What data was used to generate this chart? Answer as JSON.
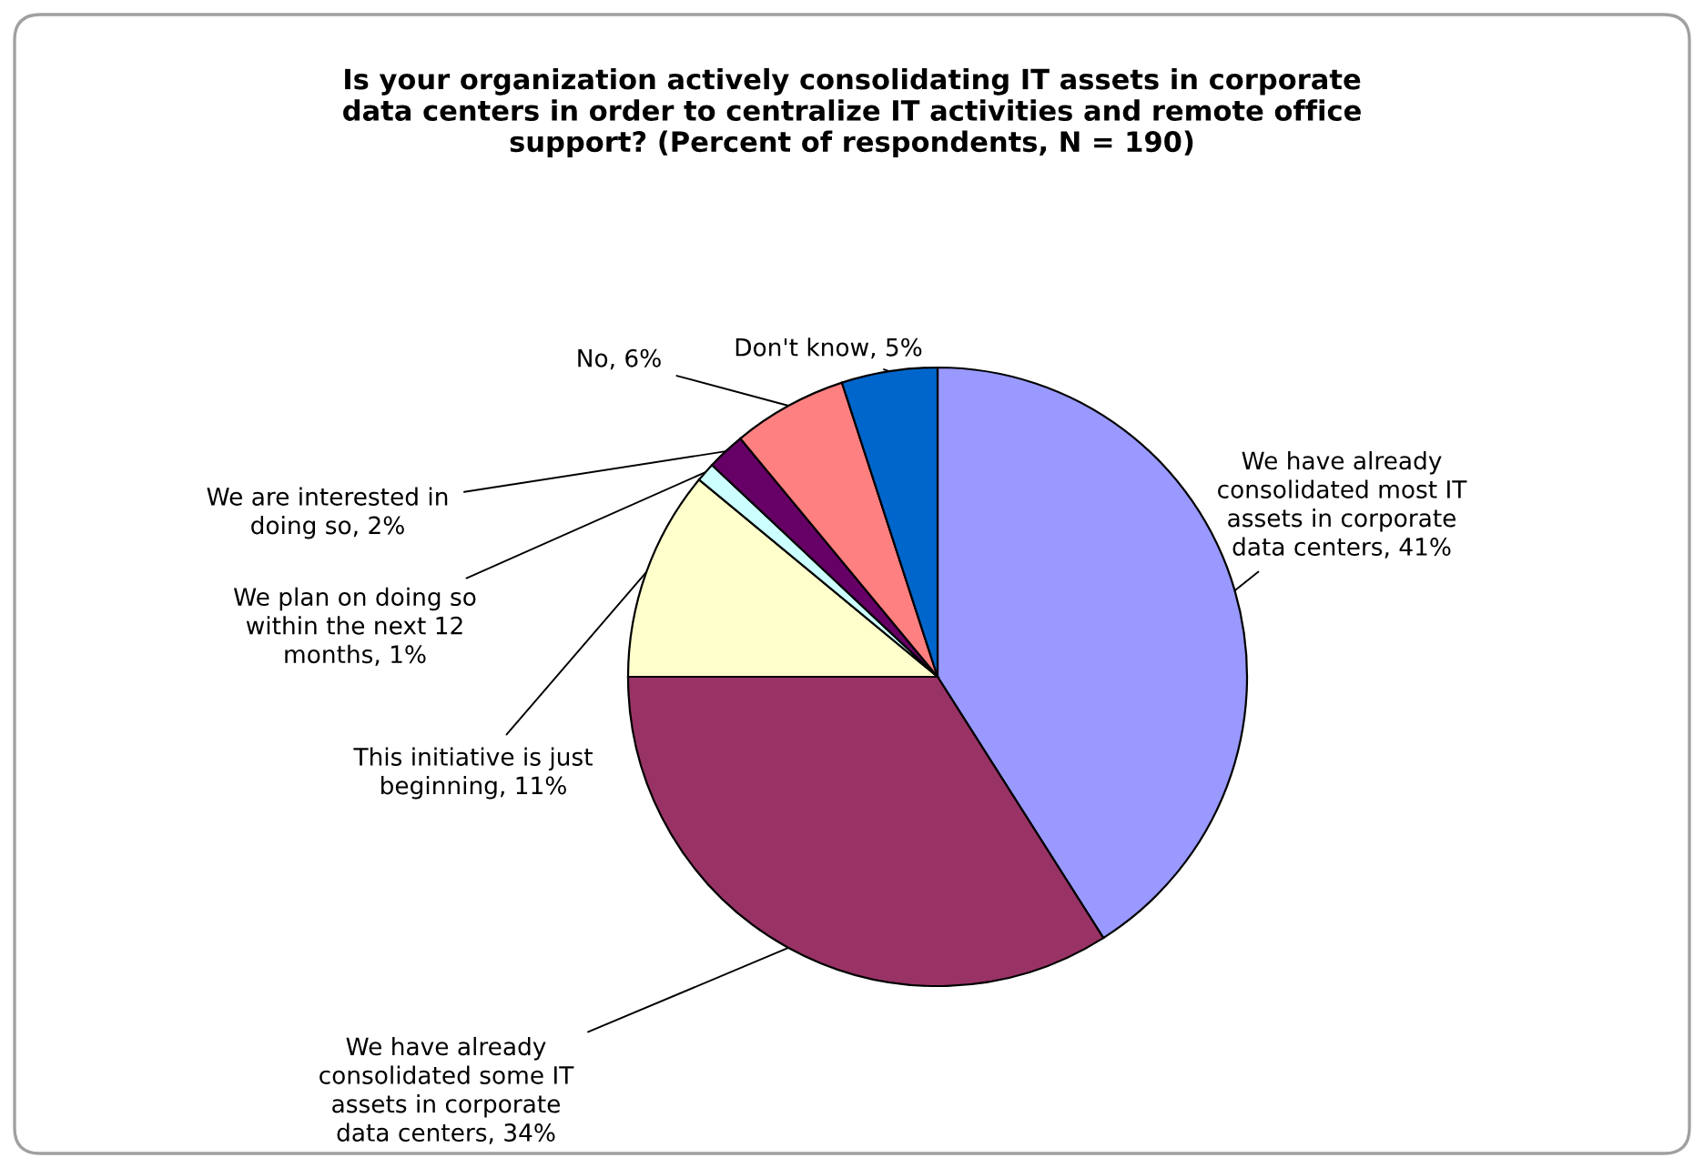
{
  "chart_data": {
    "type": "pie",
    "title": "Is your organization actively consolidating IT assets in corporate\ndata centers in order to centralize IT activities and remote office\nsupport? (Percent of respondents, N = 190)",
    "categories": [
      "We have already\nconsolidated most IT\nassets in corporate\ndata centers",
      "We have already\nconsolidated some IT\nassets in corporate\ndata centers",
      "This initiative is just\nbeginning",
      "We plan on doing so\nwithin the next 12\nmonths",
      "We are interested in\ndoing so",
      "No",
      "Don't know"
    ],
    "values": [
      41,
      34,
      11,
      1,
      2,
      6,
      5
    ],
    "colors": [
      "#9999ff",
      "#993366",
      "#ffffcc",
      "#ccffff",
      "#660066",
      "#ff8080",
      "#0066cc"
    ],
    "value_labels": [
      "41%",
      "34%",
      "11%",
      "1%",
      "2%",
      "6%",
      "5%"
    ],
    "legend": false
  }
}
